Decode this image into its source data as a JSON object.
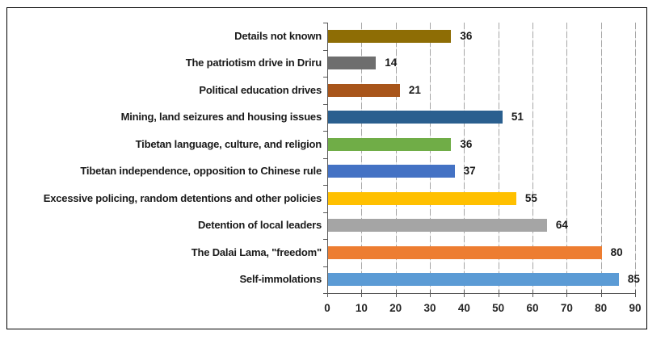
{
  "chart_data": {
    "type": "bar",
    "orientation": "horizontal",
    "title": "",
    "xlabel": "",
    "ylabel": "",
    "categories": [
      "Details not known",
      "The patriotism drive in Driru",
      "Political education drives",
      "Mining, land seizures and housing issues",
      "Tibetan language, culture, and religion",
      "Tibetan independence, opposition to Chinese rule",
      "Excessive policing, random detentions and other policies",
      "Detention of local leaders",
      "The Dalai Lama, \"freedom\"",
      "Self-immolations"
    ],
    "values": [
      36,
      14,
      21,
      51,
      36,
      37,
      55,
      64,
      80,
      85
    ],
    "bar_colors": [
      "#8E6D05",
      "#6E6E6E",
      "#A8551A",
      "#2A5F8F",
      "#70AD47",
      "#4472C4",
      "#FFC000",
      "#A5A5A5",
      "#ED7D31",
      "#5B9BD5"
    ],
    "data_labels": [
      36,
      14,
      21,
      51,
      36,
      37,
      55,
      64,
      80,
      85
    ],
    "xlim": [
      0,
      90
    ],
    "x_tick_labels": [
      "0",
      "10",
      "20",
      "30",
      "40",
      "50",
      "60",
      "70",
      "80",
      "90"
    ],
    "grid": "vertical",
    "legend": "none",
    "colors_meta": {
      "gridline": "#A6A6A6",
      "axis": "#595959",
      "chart_border": "#000000",
      "text": "#1A1A1A",
      "background": "#FFFFFF"
    }
  }
}
